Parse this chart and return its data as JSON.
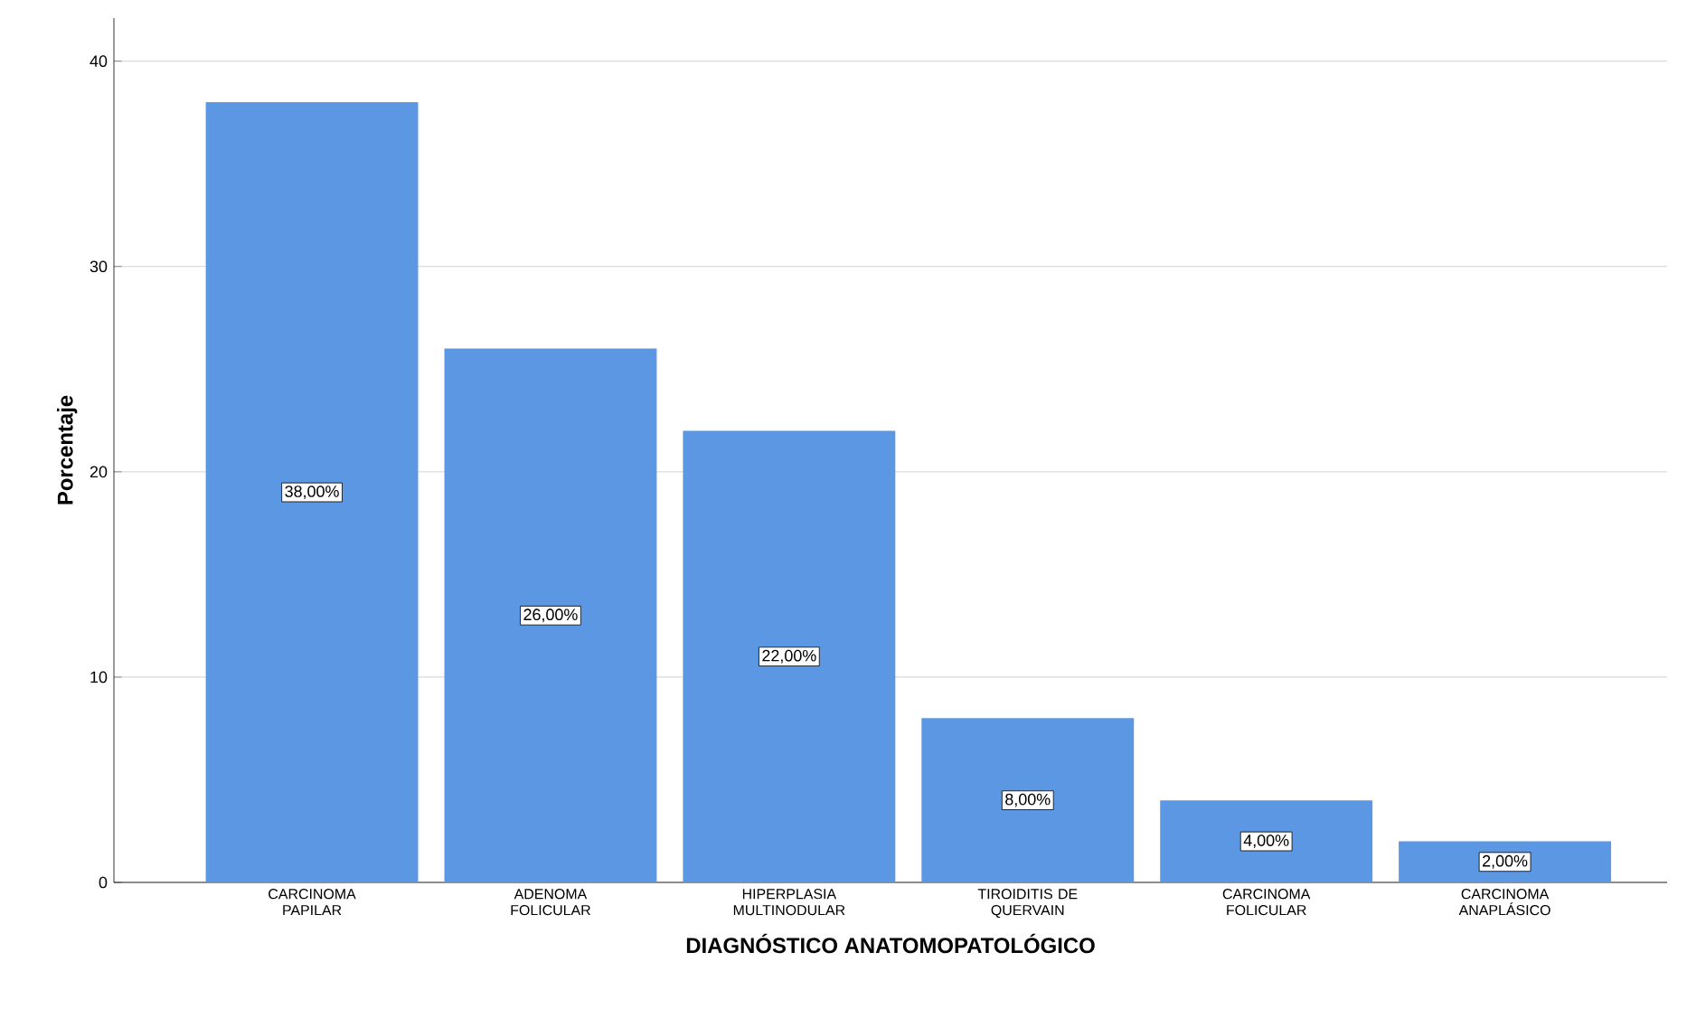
{
  "chart_data": {
    "type": "bar",
    "xlabel": "DIAGNÓSTICO ANATOMOPATOLÓGICO",
    "ylabel": "Porcentaje",
    "categories": [
      "CARCINOMA PAPILAR",
      "ADENOMA FOLICULAR",
      "HIPERPLASIA MULTINODULAR",
      "TIROIDITIS DE QUERVAIN",
      "CARCINOMA FOLICULAR",
      "CARCINOMA ANAPLÁSICO"
    ],
    "values": [
      38,
      26,
      22,
      8,
      4,
      2
    ],
    "value_labels": [
      "38,00%",
      "26,00%",
      "22,00%",
      "8,00%",
      "4,00%",
      "2,00%"
    ],
    "color": "#5b97e3",
    "ylim": [
      0,
      42.1
    ],
    "yticks": [
      0,
      10,
      20,
      30,
      40
    ],
    "grid": "y"
  }
}
